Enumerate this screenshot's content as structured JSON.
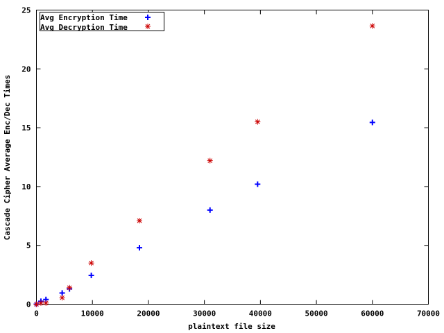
{
  "chart_data": {
    "type": "scatter",
    "title": "",
    "xlabel": "plaintext file size",
    "ylabel": "Cascade Cipher Average Enc/Dec Times",
    "xlim": [
      0,
      70000
    ],
    "ylim": [
      0,
      25
    ],
    "xticks": [
      0,
      10000,
      20000,
      30000,
      40000,
      50000,
      60000,
      70000
    ],
    "yticks": [
      0,
      5,
      10,
      15,
      20,
      25
    ],
    "xtick_labels": [
      "0",
      "10000",
      "20000",
      "30000",
      "40000",
      "50000",
      "60000",
      "70000"
    ],
    "ytick_labels": [
      "0",
      "5",
      "10",
      "15",
      "20",
      "25"
    ],
    "grid": false,
    "legend_position": "top-left",
    "series": [
      {
        "name": "Avg Encryption Time",
        "marker": "plus",
        "color": "#0000ff",
        "x": [
          0,
          800,
          1700,
          4600,
          5900,
          9800,
          18400,
          31000,
          39500,
          60000
        ],
        "y": [
          0.0,
          0.25,
          0.4,
          0.95,
          1.3,
          2.45,
          4.8,
          8.0,
          10.2,
          15.45
        ]
      },
      {
        "name": "Avg Decryption Time",
        "marker": "star",
        "color": "#cc0000",
        "x": [
          0,
          800,
          1700,
          4600,
          5900,
          9800,
          18400,
          31000,
          39500,
          60000
        ],
        "y": [
          0.0,
          0.1,
          0.1,
          0.55,
          1.4,
          3.5,
          7.1,
          12.2,
          15.5,
          23.65
        ]
      }
    ]
  }
}
